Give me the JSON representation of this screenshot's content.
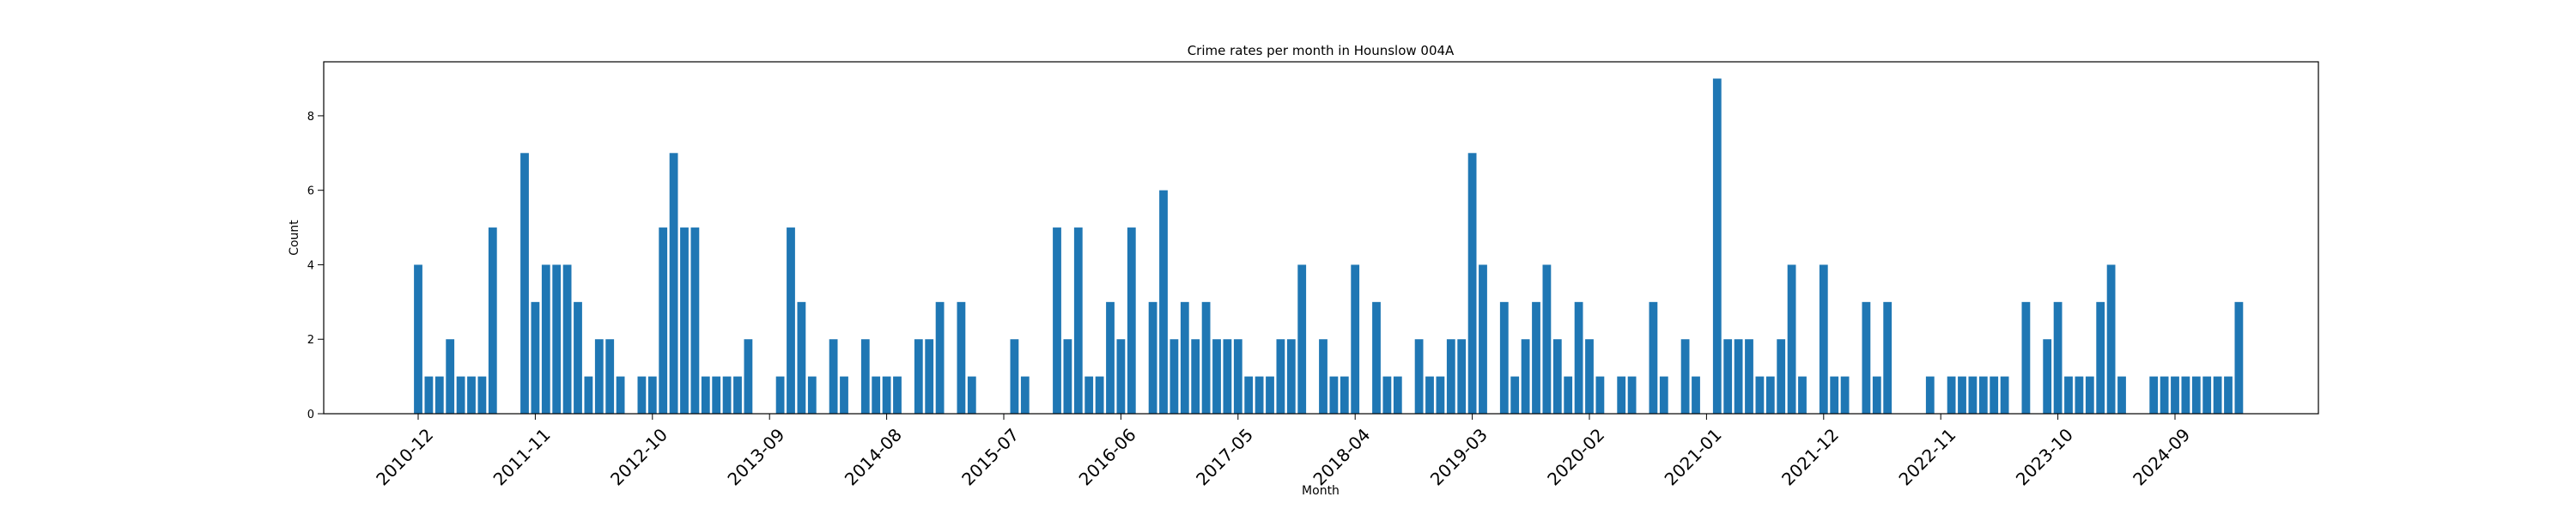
{
  "chart_data": {
    "type": "bar",
    "title": "Crime rates per month in Hounslow 004A",
    "xlabel": "Month",
    "ylabel": "Count",
    "ylim": [
      0,
      9.45
    ],
    "yticks": [
      0,
      2,
      4,
      6,
      8
    ],
    "xtick_labels": [
      "2010-12",
      "2011-11",
      "2012-10",
      "2013-09",
      "2014-08",
      "2015-07",
      "2016-06",
      "2017-05",
      "2018-04",
      "2019-03",
      "2020-02",
      "2021-01",
      "2021-12",
      "2022-11",
      "2023-10",
      "2024-09"
    ],
    "xtick_months": [
      0,
      11,
      22,
      33,
      44,
      55,
      66,
      77,
      88,
      99,
      110,
      121,
      132,
      143,
      154,
      165
    ],
    "start_month": "2010-12",
    "values": [
      4,
      1,
      1,
      2,
      1,
      1,
      1,
      5,
      0,
      0,
      7,
      3,
      4,
      4,
      4,
      3,
      1,
      2,
      2,
      1,
      0,
      1,
      1,
      5,
      7,
      5,
      5,
      1,
      1,
      1,
      1,
      2,
      0,
      0,
      1,
      5,
      3,
      1,
      0,
      2,
      1,
      0,
      2,
      1,
      1,
      1,
      0,
      2,
      2,
      3,
      0,
      3,
      1,
      0,
      0,
      0,
      2,
      1,
      0,
      0,
      5,
      2,
      5,
      1,
      1,
      3,
      2,
      5,
      0,
      3,
      6,
      2,
      3,
      2,
      3,
      2,
      2,
      2,
      1,
      1,
      1,
      2,
      2,
      4,
      0,
      2,
      1,
      1,
      4,
      0,
      3,
      1,
      1,
      0,
      2,
      1,
      1,
      2,
      2,
      7,
      4,
      0,
      3,
      1,
      2,
      3,
      4,
      2,
      1,
      3,
      2,
      1,
      0,
      1,
      1,
      0,
      3,
      1,
      0,
      2,
      1,
      0,
      9,
      2,
      2,
      2,
      1,
      1,
      2,
      4,
      1,
      0,
      4,
      1,
      1,
      0,
      3,
      1,
      3,
      0,
      0,
      0,
      1,
      0,
      1,
      1,
      1,
      1,
      1,
      1,
      0,
      3,
      0,
      2,
      3,
      1,
      1,
      1,
      3,
      4,
      1,
      0,
      0,
      1,
      1,
      1,
      1,
      1,
      1,
      1,
      1,
      3
    ],
    "bar_color": "#1f77b4",
    "grid": false
  }
}
